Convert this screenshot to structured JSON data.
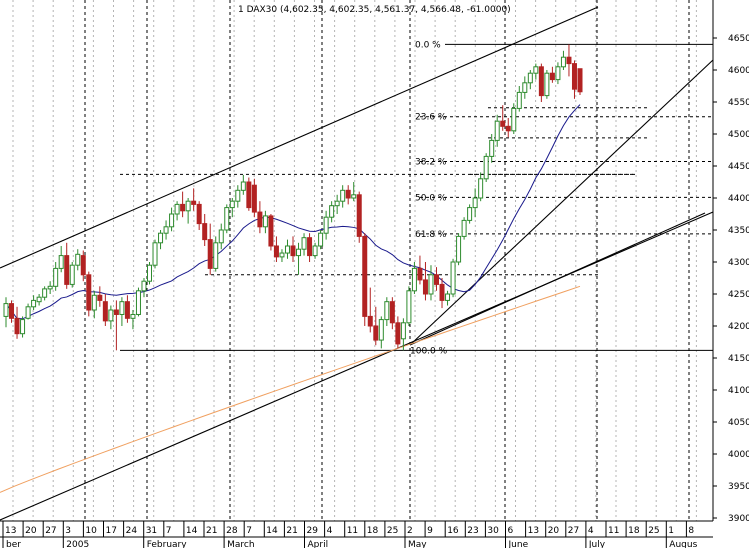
{
  "chart_data": {
    "type": "candlestick",
    "title": "1 DAX30 (4,602.35, 4,602.35, 4,561.37, 4,566.48, -61.0000)",
    "y_ticks": [
      3900,
      3950,
      4000,
      4050,
      4100,
      4150,
      4200,
      4250,
      4300,
      4350,
      4400,
      4450,
      4500,
      4550,
      4600,
      4650
    ],
    "ylim": [
      3875,
      4695
    ],
    "x_day_labels": [
      "13",
      "20",
      "27",
      "3",
      "10",
      "17",
      "24",
      "31",
      "7",
      "14",
      "21",
      "28",
      "7",
      "14",
      "21",
      "29",
      "4",
      "11",
      "18",
      "25",
      "2",
      "9",
      "16",
      "23",
      "30",
      "6",
      "13",
      "20",
      "27",
      "4",
      "11",
      "18",
      "25",
      "1",
      "8"
    ],
    "x_month_labels": [
      {
        "label": "ber",
        "at_day_index": 0
      },
      {
        "label": "2005",
        "at_day_index": 3
      },
      {
        "label": "February",
        "at_day_index": 7
      },
      {
        "label": "March",
        "at_day_index": 11
      },
      {
        "label": "April",
        "at_day_index": 15
      },
      {
        "label": "May",
        "at_day_index": 20
      },
      {
        "label": "June",
        "at_day_index": 25
      },
      {
        "label": "July",
        "at_day_index": 29
      },
      {
        "label": "Augus",
        "at_day_index": 33
      }
    ],
    "fibonacci": {
      "high": 4640,
      "low": 4162,
      "levels": [
        {
          "label": "0.0 %",
          "value": 4640
        },
        {
          "label": "23.6 %",
          "value": 4527
        },
        {
          "label": "38.2 %",
          "value": 4457
        },
        {
          "label": "50.0 %",
          "value": 4401
        },
        {
          "label": "61.8 %",
          "value": 4344
        },
        {
          "label": "100.0 %",
          "value": 4162
        }
      ]
    },
    "ohlc": [
      {
        "o": 4215,
        "h": 4245,
        "l": 4198,
        "c": 4235
      },
      {
        "o": 4235,
        "h": 4240,
        "l": 4205,
        "c": 4212
      },
      {
        "o": 4212,
        "h": 4230,
        "l": 4180,
        "c": 4188
      },
      {
        "o": 4188,
        "h": 4215,
        "l": 4182,
        "c": 4210
      },
      {
        "o": 4212,
        "h": 4235,
        "l": 4210,
        "c": 4230
      },
      {
        "o": 4230,
        "h": 4248,
        "l": 4225,
        "c": 4240
      },
      {
        "o": 4238,
        "h": 4250,
        "l": 4232,
        "c": 4245
      },
      {
        "o": 4245,
        "h": 4262,
        "l": 4240,
        "c": 4258
      },
      {
        "o": 4258,
        "h": 4270,
        "l": 4250,
        "c": 4262
      },
      {
        "o": 4262,
        "h": 4300,
        "l": 4255,
        "c": 4290
      },
      {
        "o": 4290,
        "h": 4325,
        "l": 4284,
        "c": 4310
      },
      {
        "o": 4310,
        "h": 4330,
        "l": 4258,
        "c": 4265
      },
      {
        "o": 4265,
        "h": 4300,
        "l": 4260,
        "c": 4295
      },
      {
        "o": 4295,
        "h": 4320,
        "l": 4287,
        "c": 4312
      },
      {
        "o": 4310,
        "h": 4318,
        "l": 4270,
        "c": 4280
      },
      {
        "o": 4280,
        "h": 4285,
        "l": 4215,
        "c": 4225
      },
      {
        "o": 4225,
        "h": 4255,
        "l": 4212,
        "c": 4248
      },
      {
        "o": 4248,
        "h": 4262,
        "l": 4230,
        "c": 4240
      },
      {
        "o": 4238,
        "h": 4250,
        "l": 4200,
        "c": 4208
      },
      {
        "o": 4208,
        "h": 4232,
        "l": 4195,
        "c": 4225
      },
      {
        "o": 4225,
        "h": 4240,
        "l": 4162,
        "c": 4218
      },
      {
        "o": 4218,
        "h": 4245,
        "l": 4200,
        "c": 4238
      },
      {
        "o": 4238,
        "h": 4248,
        "l": 4205,
        "c": 4212
      },
      {
        "o": 4212,
        "h": 4225,
        "l": 4195,
        "c": 4218
      },
      {
        "o": 4218,
        "h": 4260,
        "l": 4215,
        "c": 4255
      },
      {
        "o": 4255,
        "h": 4275,
        "l": 4245,
        "c": 4270
      },
      {
        "o": 4270,
        "h": 4300,
        "l": 4265,
        "c": 4295
      },
      {
        "o": 4295,
        "h": 4335,
        "l": 4290,
        "c": 4330
      },
      {
        "o": 4330,
        "h": 4350,
        "l": 4320,
        "c": 4345
      },
      {
        "o": 4345,
        "h": 4365,
        "l": 4335,
        "c": 4355
      },
      {
        "o": 4355,
        "h": 4385,
        "l": 4348,
        "c": 4375
      },
      {
        "o": 4375,
        "h": 4395,
        "l": 4365,
        "c": 4390
      },
      {
        "o": 4390,
        "h": 4410,
        "l": 4370,
        "c": 4380
      },
      {
        "o": 4380,
        "h": 4400,
        "l": 4360,
        "c": 4395
      },
      {
        "o": 4395,
        "h": 4415,
        "l": 4380,
        "c": 4390
      },
      {
        "o": 4390,
        "h": 4395,
        "l": 4350,
        "c": 4360
      },
      {
        "o": 4360,
        "h": 4375,
        "l": 4325,
        "c": 4335
      },
      {
        "o": 4335,
        "h": 4360,
        "l": 4280,
        "c": 4290
      },
      {
        "o": 4290,
        "h": 4340,
        "l": 4285,
        "c": 4330
      },
      {
        "o": 4330,
        "h": 4360,
        "l": 4320,
        "c": 4350
      },
      {
        "o": 4350,
        "h": 4390,
        "l": 4345,
        "c": 4385
      },
      {
        "o": 4385,
        "h": 4400,
        "l": 4370,
        "c": 4395
      },
      {
        "o": 4395,
        "h": 4420,
        "l": 4385,
        "c": 4412
      },
      {
        "o": 4412,
        "h": 4436,
        "l": 4405,
        "c": 4425
      },
      {
        "o": 4425,
        "h": 4432,
        "l": 4380,
        "c": 4385
      },
      {
        "o": 4420,
        "h": 4430,
        "l": 4370,
        "c": 4378
      },
      {
        "o": 4378,
        "h": 4395,
        "l": 4345,
        "c": 4355
      },
      {
        "o": 4355,
        "h": 4380,
        "l": 4345,
        "c": 4372
      },
      {
        "o": 4372,
        "h": 4375,
        "l": 4318,
        "c": 4325
      },
      {
        "o": 4325,
        "h": 4340,
        "l": 4300,
        "c": 4308
      },
      {
        "o": 4308,
        "h": 4320,
        "l": 4300,
        "c": 4314
      },
      {
        "o": 4314,
        "h": 4335,
        "l": 4305,
        "c": 4325
      },
      {
        "o": 4325,
        "h": 4340,
        "l": 4300,
        "c": 4310
      },
      {
        "o": 4310,
        "h": 4330,
        "l": 4280,
        "c": 4320
      },
      {
        "o": 4320,
        "h": 4345,
        "l": 4310,
        "c": 4338
      },
      {
        "o": 4338,
        "h": 4345,
        "l": 4300,
        "c": 4310
      },
      {
        "o": 4310,
        "h": 4330,
        "l": 4305,
        "c": 4325
      },
      {
        "o": 4325,
        "h": 4350,
        "l": 4320,
        "c": 4345
      },
      {
        "o": 4345,
        "h": 4380,
        "l": 4335,
        "c": 4370
      },
      {
        "o": 4370,
        "h": 4395,
        "l": 4362,
        "c": 4388
      },
      {
        "o": 4388,
        "h": 4405,
        "l": 4375,
        "c": 4395
      },
      {
        "o": 4395,
        "h": 4420,
        "l": 4385,
        "c": 4412
      },
      {
        "o": 4412,
        "h": 4420,
        "l": 4390,
        "c": 4400
      },
      {
        "o": 4400,
        "h": 4425,
        "l": 4395,
        "c": 4405
      },
      {
        "o": 4405,
        "h": 4410,
        "l": 4330,
        "c": 4340
      },
      {
        "o": 4340,
        "h": 4345,
        "l": 4200,
        "c": 4215
      },
      {
        "o": 4215,
        "h": 4260,
        "l": 4190,
        "c": 4200
      },
      {
        "o": 4200,
        "h": 4230,
        "l": 4170,
        "c": 4178
      },
      {
        "o": 4178,
        "h": 4215,
        "l": 4165,
        "c": 4210
      },
      {
        "o": 4210,
        "h": 4245,
        "l": 4200,
        "c": 4238
      },
      {
        "o": 4238,
        "h": 4245,
        "l": 4195,
        "c": 4205
      },
      {
        "o": 4205,
        "h": 4215,
        "l": 4165,
        "c": 4172
      },
      {
        "o": 4180,
        "h": 4212,
        "l": 4162,
        "c": 4205
      },
      {
        "o": 4205,
        "h": 4262,
        "l": 4200,
        "c": 4255
      },
      {
        "o": 4255,
        "h": 4300,
        "l": 4250,
        "c": 4290
      },
      {
        "o": 4290,
        "h": 4310,
        "l": 4265,
        "c": 4272
      },
      {
        "o": 4272,
        "h": 4300,
        "l": 4240,
        "c": 4250
      },
      {
        "o": 4250,
        "h": 4295,
        "l": 4240,
        "c": 4280
      },
      {
        "o": 4280,
        "h": 4292,
        "l": 4255,
        "c": 4265
      },
      {
        "o": 4265,
        "h": 4275,
        "l": 4228,
        "c": 4240
      },
      {
        "o": 4240,
        "h": 4255,
        "l": 4232,
        "c": 4250
      },
      {
        "o": 4250,
        "h": 4305,
        "l": 4245,
        "c": 4300
      },
      {
        "o": 4300,
        "h": 4345,
        "l": 4295,
        "c": 4340
      },
      {
        "o": 4340,
        "h": 4370,
        "l": 4335,
        "c": 4365
      },
      {
        "o": 4365,
        "h": 4390,
        "l": 4360,
        "c": 4385
      },
      {
        "o": 4385,
        "h": 4415,
        "l": 4370,
        "c": 4400
      },
      {
        "o": 4400,
        "h": 4440,
        "l": 4395,
        "c": 4430
      },
      {
        "o": 4430,
        "h": 4470,
        "l": 4425,
        "c": 4465
      },
      {
        "o": 4465,
        "h": 4500,
        "l": 4455,
        "c": 4490
      },
      {
        "o": 4490,
        "h": 4530,
        "l": 4480,
        "c": 4520
      },
      {
        "o": 4520,
        "h": 4545,
        "l": 4505,
        "c": 4512
      },
      {
        "o": 4512,
        "h": 4525,
        "l": 4495,
        "c": 4505
      },
      {
        "o": 4505,
        "h": 4548,
        "l": 4500,
        "c": 4540
      },
      {
        "o": 4540,
        "h": 4575,
        "l": 4535,
        "c": 4565
      },
      {
        "o": 4565,
        "h": 4590,
        "l": 4555,
        "c": 4580
      },
      {
        "o": 4580,
        "h": 4600,
        "l": 4570,
        "c": 4595
      },
      {
        "o": 4595,
        "h": 4610,
        "l": 4585,
        "c": 4605
      },
      {
        "o": 4605,
        "h": 4610,
        "l": 4550,
        "c": 4560
      },
      {
        "o": 4560,
        "h": 4600,
        "l": 4555,
        "c": 4595
      },
      {
        "o": 4595,
        "h": 4605,
        "l": 4580,
        "c": 4585
      },
      {
        "o": 4585,
        "h": 4612,
        "l": 4578,
        "c": 4605
      },
      {
        "o": 4605,
        "h": 4630,
        "l": 4600,
        "c": 4620
      },
      {
        "o": 4620,
        "h": 4640,
        "l": 4590,
        "c": 4610
      },
      {
        "o": 4610,
        "h": 4615,
        "l": 4555,
        "c": 4570
      },
      {
        "o": 4602,
        "h": 4602,
        "l": 4561,
        "c": 4566
      }
    ]
  }
}
